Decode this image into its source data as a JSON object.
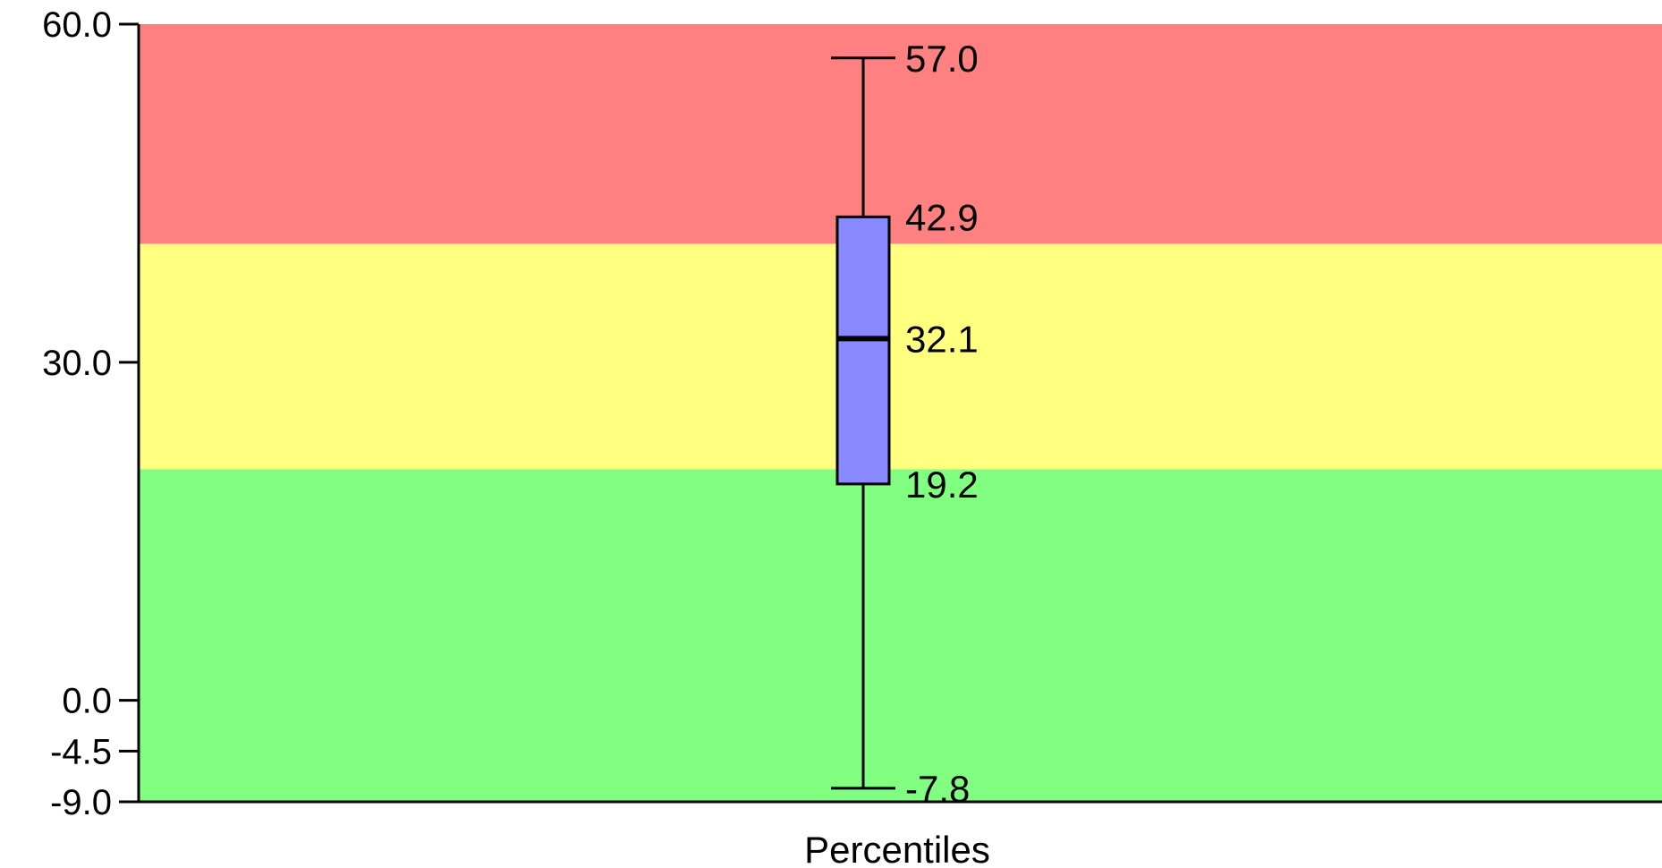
{
  "chart_data": {
    "type": "boxplot",
    "xlabel": "Percentiles",
    "ylim": [
      -9.0,
      60.0
    ],
    "yticks": [
      {
        "value": 60.0,
        "label": "60.0"
      },
      {
        "value": 30.0,
        "label": "30.0"
      },
      {
        "value": 0.0,
        "label": "0.0"
      },
      {
        "value": -4.5,
        "label": "-4.5"
      },
      {
        "value": -9.0,
        "label": "-9.0"
      }
    ],
    "bands": [
      {
        "from": 40.5,
        "to": 60.0,
        "color": "#FF8080"
      },
      {
        "from": 20.5,
        "to": 40.5,
        "color": "#FFFF80"
      },
      {
        "from": -9.0,
        "to": 20.5,
        "color": "#80FF80"
      }
    ],
    "box": {
      "min": -7.8,
      "q1": 19.2,
      "median": 32.1,
      "q3": 42.9,
      "max": 57.0,
      "fill": "#8888FF",
      "labels": {
        "max": "57.0",
        "q3": "42.9",
        "median": "32.1",
        "q1": "19.2",
        "min": "-7.8"
      }
    }
  }
}
